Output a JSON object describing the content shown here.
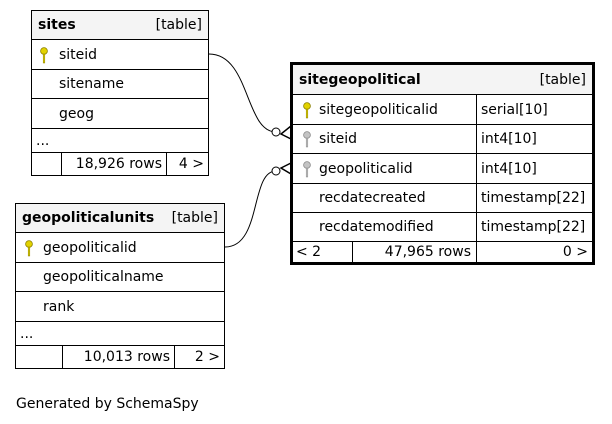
{
  "footer": "Generated by SchemaSpy",
  "sites": {
    "name": "sites",
    "tag": "[table]",
    "columns": [
      "siteid",
      "sitename",
      "geog"
    ],
    "ellipsis": "...",
    "rows": "18,926 rows",
    "children": "4 >"
  },
  "geopoliticalunits": {
    "name": "geopoliticalunits",
    "tag": "[table]",
    "columns": [
      "geopoliticalid",
      "geopoliticalname",
      "rank"
    ],
    "ellipsis": "...",
    "rows": "10,013 rows",
    "children": "2 >"
  },
  "sitegeopolitical": {
    "name": "sitegeopolitical",
    "tag": "[table]",
    "columns": [
      {
        "name": "sitegeopoliticalid",
        "type": "serial[10]"
      },
      {
        "name": "siteid",
        "type": "int4[10]"
      },
      {
        "name": "geopoliticalid",
        "type": "int4[10]"
      },
      {
        "name": "recdatecreated",
        "type": "timestamp[22]"
      },
      {
        "name": "recdatemodified",
        "type": "timestamp[22]"
      }
    ],
    "parents": "< 2",
    "rows": "47,965 rows",
    "children": "0 >"
  },
  "colors": {
    "primary_key": "#e2d200",
    "foreign_key": "#b0b0b0",
    "header_bg": "#f4f4f4"
  },
  "icons": {
    "primary_key": "key-icon",
    "foreign_key": "key-icon"
  }
}
